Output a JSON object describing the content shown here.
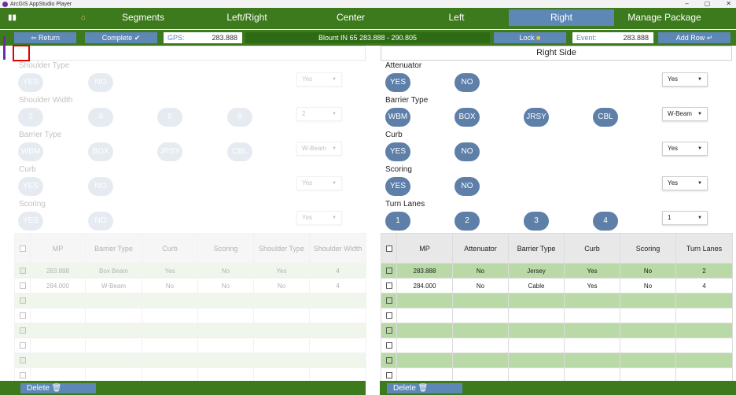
{
  "window": {
    "title": "ArcGIS AppStudio Player",
    "minimize": "–",
    "maximize": "▢",
    "close": "✕"
  },
  "tabs": [
    "Segments",
    "Left/Right",
    "Center",
    "Left",
    "Right",
    "Manage Package"
  ],
  "active_tab": "Right",
  "toolbar": {
    "return_label": "Return ⇦",
    "return_text": "Return",
    "complete_label": "Complete",
    "complete_icon": "✔",
    "gps_label": "GPS:",
    "gps_value": "283.888",
    "banner": "Blount IN 65 283.888 - 290.805",
    "lock_label": "Lock",
    "lock_icon": "🔒",
    "event_label": "Event:",
    "event_value": "283.888",
    "add_row_label": "Add Row ↵"
  },
  "right": {
    "header": "Right Side",
    "attenuator": {
      "label": "Attenuator",
      "options": [
        "YES",
        "NO"
      ],
      "selected": "Yes"
    },
    "barrier_type": {
      "label": "Barrier Type",
      "options": [
        "WBM",
        "BOX",
        "JRSY",
        "CBL"
      ],
      "selected": "W-Beam"
    },
    "curb": {
      "label": "Curb",
      "options": [
        "YES",
        "NO"
      ],
      "selected": "Yes"
    },
    "scoring": {
      "label": "Scoring",
      "options": [
        "YES",
        "NO"
      ],
      "selected": "Yes"
    },
    "turn_lanes": {
      "label": "Turn Lanes",
      "options": [
        "1",
        "2",
        "3",
        "4"
      ],
      "selected": "1"
    },
    "table": {
      "columns": [
        "MP",
        "Attenuator",
        "Barrier Type",
        "Curb",
        "Scoring",
        "Turn Lanes"
      ],
      "rows": [
        [
          "283.888",
          "No",
          "Jersey",
          "Yes",
          "No",
          "2"
        ],
        [
          "284.000",
          "No",
          "Cable",
          "Yes",
          "No",
          "4"
        ],
        [
          "",
          "",
          "",
          "",
          "",
          ""
        ],
        [
          "",
          "",
          "",
          "",
          "",
          ""
        ],
        [
          "",
          "",
          "",
          "",
          "",
          ""
        ],
        [
          "",
          "",
          "",
          "",
          "",
          ""
        ],
        [
          "",
          "",
          "",
          "",
          "",
          ""
        ],
        [
          "",
          "",
          "",
          "",
          "",
          ""
        ]
      ]
    },
    "delete_label": "Delete 🗑"
  },
  "left": {
    "shoulder_type": {
      "label": "Shoulder Type",
      "options": [
        "YES",
        "NO"
      ],
      "selected": "Yes"
    },
    "shoulder_width": {
      "label": "Shoulder Width",
      "options": [
        "2",
        "4",
        "6",
        "8"
      ],
      "selected": "2"
    },
    "barrier_type": {
      "label": "Barrier Type",
      "options": [
        "WBM",
        "BOX",
        "JRSY",
        "CBL"
      ],
      "selected": "W-Beam"
    },
    "curb": {
      "label": "Curb",
      "options": [
        "YES",
        "NO"
      ],
      "selected": "Yes"
    },
    "scoring": {
      "label": "Scoring",
      "options": [
        "YES",
        "NO"
      ],
      "selected": "Yes"
    },
    "table": {
      "columns": [
        "MP",
        "Barrier Type",
        "Curb",
        "Scoring",
        "Shoulder Type",
        "Shoulder Width"
      ],
      "rows": [
        [
          "283.888",
          "Box Beam",
          "Yes",
          "No",
          "Yes",
          "4"
        ],
        [
          "284.000",
          "W-Beam",
          "No",
          "No",
          "No",
          "4"
        ],
        [
          "",
          "",
          "",
          "",
          "",
          ""
        ],
        [
          "",
          "",
          "",
          "",
          "",
          ""
        ],
        [
          "",
          "",
          "",
          "",
          "",
          ""
        ],
        [
          "",
          "",
          "",
          "",
          "",
          ""
        ],
        [
          "",
          "",
          "",
          "",
          "",
          ""
        ],
        [
          "",
          "",
          "",
          "",
          "",
          ""
        ]
      ]
    },
    "delete_label": "Delete 🗑"
  },
  "colors": {
    "green_bar": "#3c7a1d",
    "blue_button": "#5d87b5",
    "pill": "#5e7fa8",
    "row_green": "#b9d9a6",
    "selection_red": "#e00000"
  }
}
